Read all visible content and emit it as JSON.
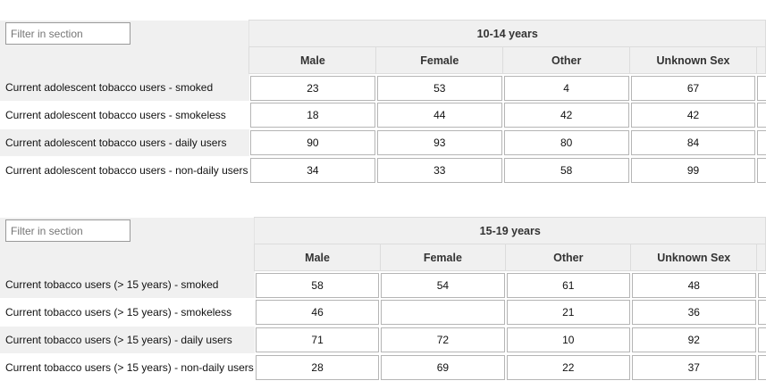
{
  "sections": [
    {
      "filter_placeholder": "Filter in section",
      "group": "10-14 years",
      "columns": [
        "Male",
        "Female",
        "Other",
        "Unknown Sex"
      ],
      "rows": [
        {
          "label": "Current adolescent tobacco users - smoked",
          "values": [
            "23",
            "53",
            "4",
            "67"
          ]
        },
        {
          "label": "Current adolescent tobacco users - smokeless",
          "values": [
            "18",
            "44",
            "42",
            "42"
          ]
        },
        {
          "label": "Current adolescent tobacco users - daily users",
          "values": [
            "90",
            "93",
            "80",
            "84"
          ]
        },
        {
          "label": "Current adolescent tobacco users - non-daily users",
          "values": [
            "34",
            "33",
            "58",
            "99"
          ]
        }
      ]
    },
    {
      "filter_placeholder": "Filter in section",
      "group": "15-19 years",
      "columns": [
        "Male",
        "Female",
        "Other",
        "Unknown Sex"
      ],
      "rows": [
        {
          "label": "Current tobacco users (> 15 years) - smoked",
          "values": [
            "58",
            "54",
            "61",
            "48"
          ]
        },
        {
          "label": "Current tobacco users (> 15 years) - smokeless",
          "values": [
            "46",
            "",
            "21",
            "36"
          ]
        },
        {
          "label": "Current tobacco users (> 15 years) - daily users",
          "values": [
            "71",
            "72",
            "10",
            "92"
          ]
        },
        {
          "label": "Current tobacco users (> 15 years) - non-daily users",
          "values": [
            "28",
            "69",
            "22",
            "37"
          ]
        }
      ]
    }
  ]
}
